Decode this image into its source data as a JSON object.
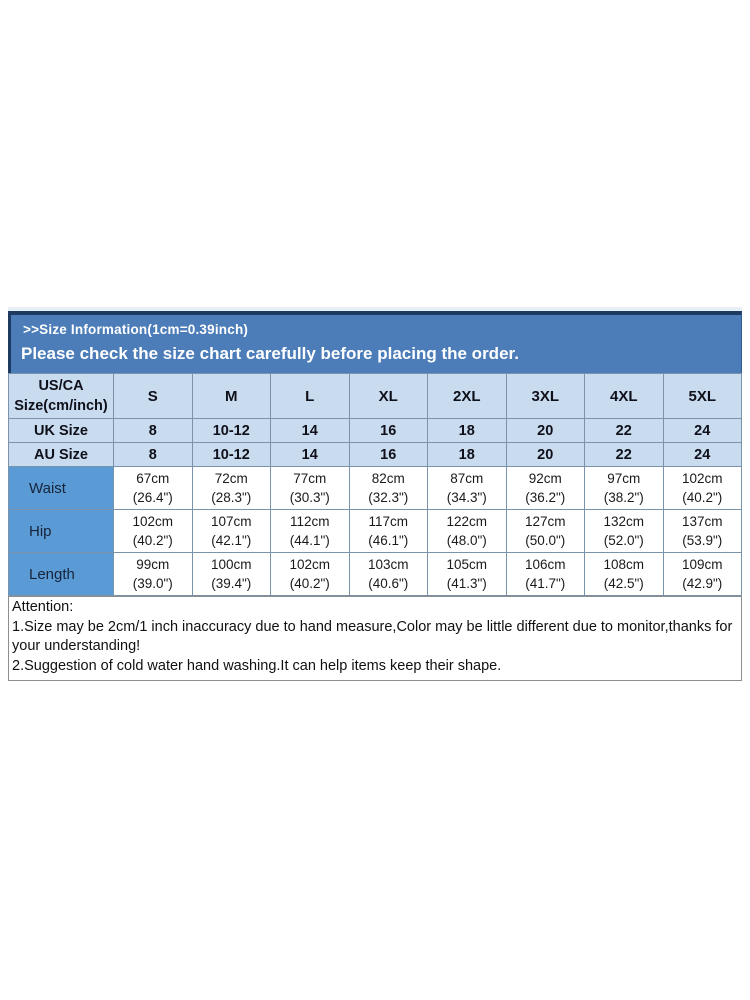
{
  "banner": {
    "title": ">>Size Information(1cm=0.39inch)",
    "subtitle": "Please check the size chart carefully before placing the order."
  },
  "table": {
    "header": {
      "label_line1": "US/CA",
      "label_line2": "Size(cm/inch)",
      "sizes": [
        "S",
        "M",
        "L",
        "XL",
        "2XL",
        "3XL",
        "4XL",
        "5XL"
      ]
    },
    "uk": {
      "label": "UK Size",
      "values": [
        "8",
        "10-12",
        "14",
        "16",
        "18",
        "20",
        "22",
        "24"
      ]
    },
    "au": {
      "label": "AU Size",
      "values": [
        "8",
        "10-12",
        "14",
        "16",
        "18",
        "20",
        "22",
        "24"
      ]
    },
    "waist": {
      "label": "Waist",
      "values": [
        {
          "cm": "67cm",
          "inch": "(26.4\")"
        },
        {
          "cm": "72cm",
          "inch": "(28.3\")"
        },
        {
          "cm": "77cm",
          "inch": "(30.3\")"
        },
        {
          "cm": "82cm",
          "inch": "(32.3\")"
        },
        {
          "cm": "87cm",
          "inch": "(34.3\")"
        },
        {
          "cm": "92cm",
          "inch": "(36.2\")"
        },
        {
          "cm": "97cm",
          "inch": "(38.2\")"
        },
        {
          "cm": "102cm",
          "inch": "(40.2\")"
        }
      ]
    },
    "hip": {
      "label": "Hip",
      "values": [
        {
          "cm": "102cm",
          "inch": "(40.2\")"
        },
        {
          "cm": "107cm",
          "inch": "(42.1\")"
        },
        {
          "cm": "112cm",
          "inch": "(44.1\")"
        },
        {
          "cm": "117cm",
          "inch": "(46.1\")"
        },
        {
          "cm": "122cm",
          "inch": "(48.0\")"
        },
        {
          "cm": "127cm",
          "inch": "(50.0\")"
        },
        {
          "cm": "132cm",
          "inch": "(52.0\")"
        },
        {
          "cm": "137cm",
          "inch": "(53.9\")"
        }
      ]
    },
    "length": {
      "label": "Length",
      "values": [
        {
          "cm": "99cm",
          "inch": "(39.0\")"
        },
        {
          "cm": "100cm",
          "inch": "(39.4\")"
        },
        {
          "cm": "102cm",
          "inch": "(40.2\")"
        },
        {
          "cm": "103cm",
          "inch": "(40.6\")"
        },
        {
          "cm": "105cm",
          "inch": "(41.3\")"
        },
        {
          "cm": "106cm",
          "inch": "(41.7\")"
        },
        {
          "cm": "108cm",
          "inch": "(42.5\")"
        },
        {
          "cm": "109cm",
          "inch": "(42.9\")"
        }
      ]
    }
  },
  "attention": {
    "heading": "Attention:",
    "note1": "1.Size may be 2cm/1 inch inaccuracy due to hand measure,Color may be little different due to monitor,thanks for your understanding!",
    "note2": "2.Suggestion of cold water hand washing.It can help items keep their shape."
  },
  "colors": {
    "banner_blue": "#4c7db8",
    "banner_border_navy": "#1e3a60",
    "light_blue_row": "#c8dbef",
    "label_blue": "#5b9bd5",
    "cell_border": "#7b93aa"
  }
}
